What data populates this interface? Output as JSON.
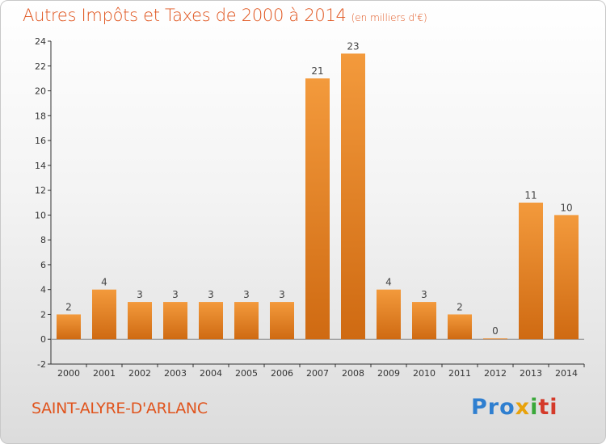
{
  "chart_data": {
    "type": "bar",
    "title": "Autres Impôts et Taxes de 2000 à 2014",
    "unit_note": "(en milliers d'€)",
    "categories": [
      "2000",
      "2001",
      "2002",
      "2003",
      "2004",
      "2005",
      "2006",
      "2007",
      "2008",
      "2009",
      "2010",
      "2011",
      "2012",
      "2013",
      "2014"
    ],
    "values": [
      2,
      4,
      3,
      3,
      3,
      3,
      3,
      21,
      23,
      4,
      3,
      2,
      0,
      11,
      10
    ],
    "ylim": [
      -2,
      24
    ],
    "yticks": [
      -2,
      0,
      2,
      4,
      6,
      8,
      10,
      12,
      14,
      16,
      18,
      20,
      22,
      24
    ],
    "grid": false,
    "bar_color": "#f39a3c",
    "bar_color_dark": "#cf6a12"
  },
  "commune": "SAINT-ALYRE-D'ARLANC",
  "logo": {
    "p1": "Pro",
    "p2": "x",
    "p3": "i",
    "p4": "ti"
  }
}
